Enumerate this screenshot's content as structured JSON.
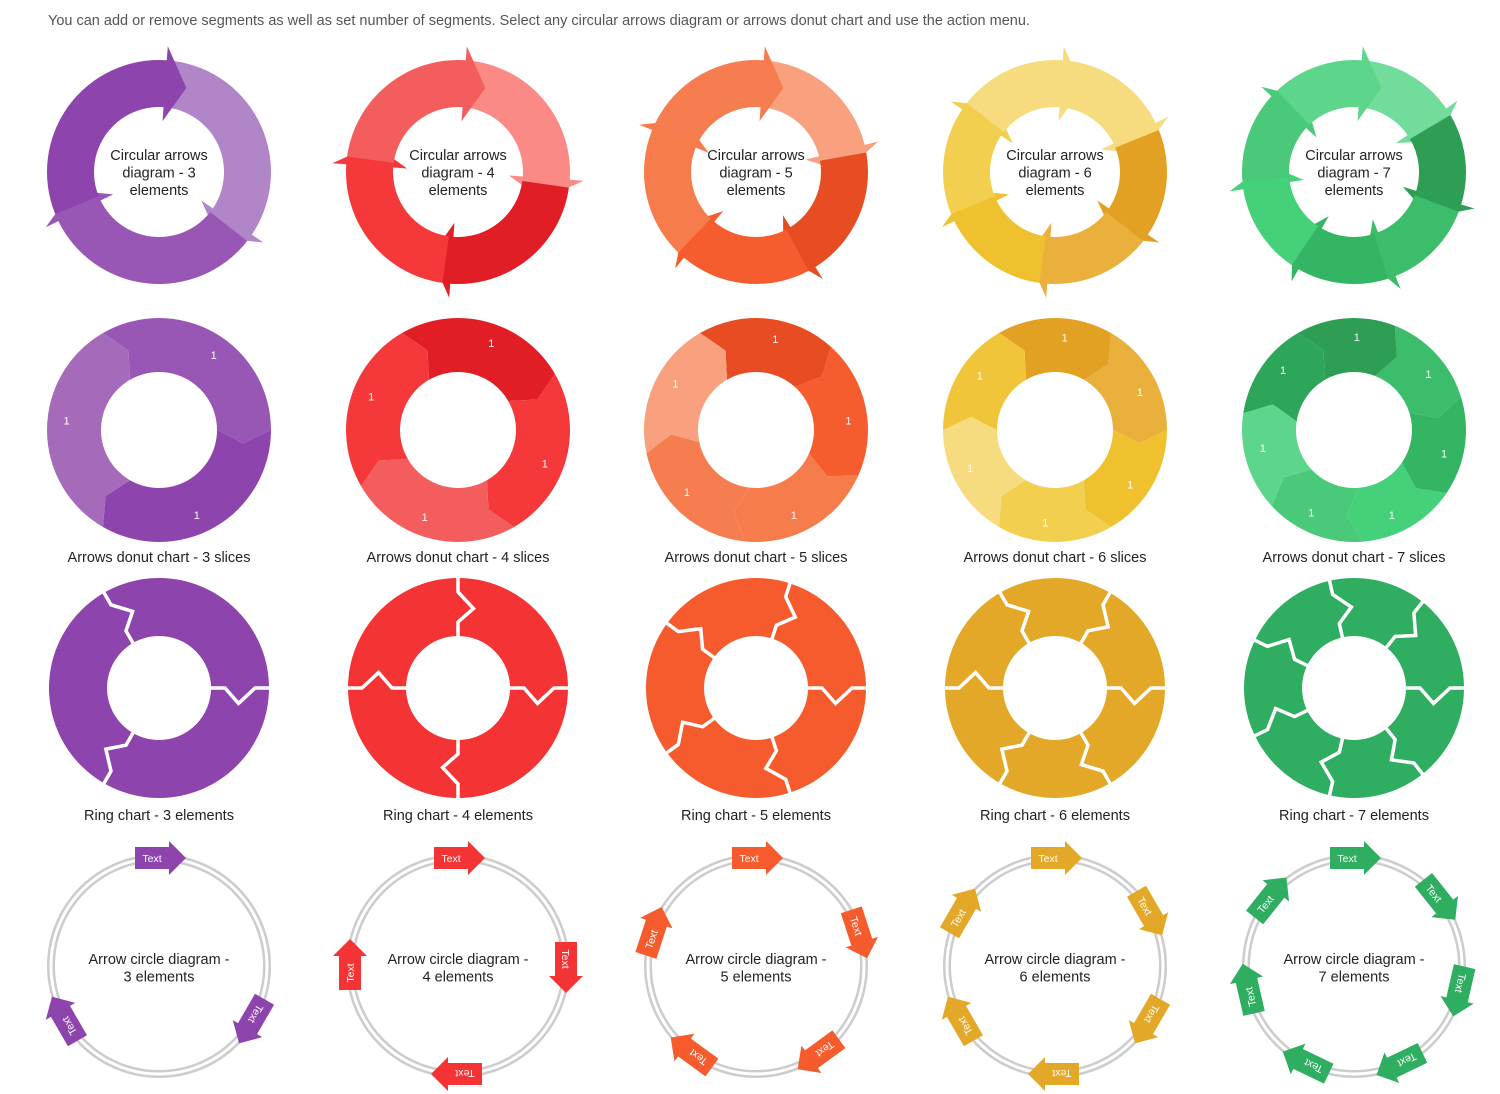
{
  "intro": "You can add or remove segments as well as set number of segments. Select any circular arrows diagram or arrows donut chart and use the action menu.",
  "palettes": [
    {
      "name": "purple",
      "colors": [
        "#b086c8",
        "#9957b5",
        "#8e44ad",
        "#a56ab9",
        "#8e44ad",
        "#9b59b6",
        "#a064ba"
      ]
    },
    {
      "name": "red",
      "colors": [
        "#fb8a86",
        "#e11e25",
        "#f5383a",
        "#f45d5d",
        "#f5383a",
        "#fb8a86",
        "#e11e25"
      ]
    },
    {
      "name": "orange",
      "colors": [
        "#f9a07e",
        "#e84c22",
        "#f55d2f",
        "#f77c4c",
        "#f57d50",
        "#f9a07e",
        "#f0613a"
      ]
    },
    {
      "name": "yellow",
      "colors": [
        "#f6dc7e",
        "#e3a123",
        "#e9b03b",
        "#efc12f",
        "#f2cf4e",
        "#f6dc7e",
        "#f1c53a"
      ]
    },
    {
      "name": "green",
      "colors": [
        "#72dc9d",
        "#2e9e55",
        "#3bbd6b",
        "#33b563",
        "#44d17a",
        "#4ac97a",
        "#5dd68c",
        "#2ea65a"
      ]
    }
  ],
  "rows": {
    "circular_arrows": {
      "counts": [
        3,
        4,
        5,
        6,
        7
      ],
      "labels": [
        [
          "Circular arrows",
          "diagram - 3",
          "elements"
        ],
        [
          "Circular arrows",
          "diagram - 4",
          "elements"
        ],
        [
          "Circular arrows",
          "diagram - 5",
          "elements"
        ],
        [
          "Circular arrows",
          "diagram - 6",
          "elements"
        ],
        [
          "Circular arrows",
          "diagram - 7",
          "elements"
        ]
      ]
    },
    "arrows_donut": {
      "counts": [
        3,
        4,
        5,
        6,
        7
      ],
      "slice_value": "1",
      "labels": [
        "Arrows donut chart - 3 slices",
        "Arrows donut chart - 4 slices",
        "Arrows donut chart - 5 slices",
        "Arrows donut chart - 6 slices",
        "Arrows donut chart - 7 slices"
      ]
    },
    "ring_chart": {
      "counts": [
        3,
        4,
        5,
        6,
        7
      ],
      "colors": [
        "#8e44ad",
        "#f33334",
        "#f55b2d",
        "#e3a828",
        "#2fad60"
      ],
      "labels": [
        "Ring chart - 3 elements",
        "Ring chart - 4 elements",
        "Ring chart - 5 elements",
        "Ring chart - 6 elements",
        "Ring chart - 7 elements"
      ]
    },
    "arrow_circle": {
      "counts": [
        3,
        4,
        5,
        6,
        7
      ],
      "colors": [
        "#8e44ad",
        "#f33334",
        "#f55b2d",
        "#e3a828",
        "#2fad60"
      ],
      "arrow_text": "Text",
      "labels": [
        [
          "Arrow circle diagram -",
          "3 elements"
        ],
        [
          "Arrow circle diagram -",
          "4 elements"
        ],
        [
          "Arrow circle diagram -",
          "5 elements"
        ],
        [
          "Arrow circle diagram -",
          "6 elements"
        ],
        [
          "Arrow circle diagram -",
          "7 elements"
        ]
      ]
    }
  }
}
